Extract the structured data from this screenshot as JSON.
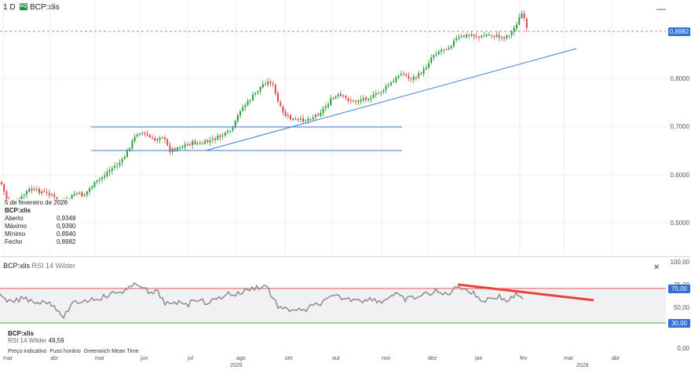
{
  "header": {
    "interval": "1 D",
    "symbol_badge": "EQ",
    "symbol": "BCP:xlis",
    "minimize_icon": "—"
  },
  "price_axis": [
    "0,8000",
    "0,7000",
    "0,6000",
    "0,5000"
  ],
  "last_price": "0,8982",
  "tooltip": {
    "date": "5 de fevereiro de 2026",
    "symbol": "BCP:xlis",
    "rows": [
      {
        "label": "Aberto",
        "value": "0,9348"
      },
      {
        "label": "Máximo",
        "value": "0,9390"
      },
      {
        "label": "Mínimo",
        "value": "0,8940"
      },
      {
        "label": "Fecho",
        "value": "0,8982"
      }
    ]
  },
  "rsi": {
    "title": "BCP:xlis",
    "subtitle": "RSI 14 Wilder",
    "close_icon": "✕",
    "axis": [
      "100,00",
      "75,00",
      "50,00",
      "0,00"
    ],
    "upper_tag": "70,00",
    "lower_tag": "30,00",
    "tooltip_symbol": "BCP:xlis",
    "tooltip_label": "RSI 14 Wilder",
    "tooltip_value": "49,59"
  },
  "footer": {
    "items": [
      "Preço indicativo",
      "Fuso horário",
      "Greenwich Mean Time"
    ]
  },
  "time_axis": {
    "months": [
      "mar",
      "abr",
      "mai",
      "jun",
      "jul",
      "ago",
      "set",
      "out",
      "nov",
      "dez",
      "jan",
      "fev",
      "mar",
      "abr"
    ],
    "years": [
      "2025",
      "2026"
    ]
  },
  "colors": {
    "up": "#2a9d3a",
    "down": "#e0474c",
    "trendline": "#3d7dd8",
    "rsi_line": "#8c8c8c",
    "rsi_upper": "#e05555",
    "rsi_lower": "#3fae49",
    "rsi_band": "#f1f1f4",
    "divergence": "#e8433a",
    "price_tag": "#2f6fd6",
    "lower_tag": "#2f6fd6"
  }
}
